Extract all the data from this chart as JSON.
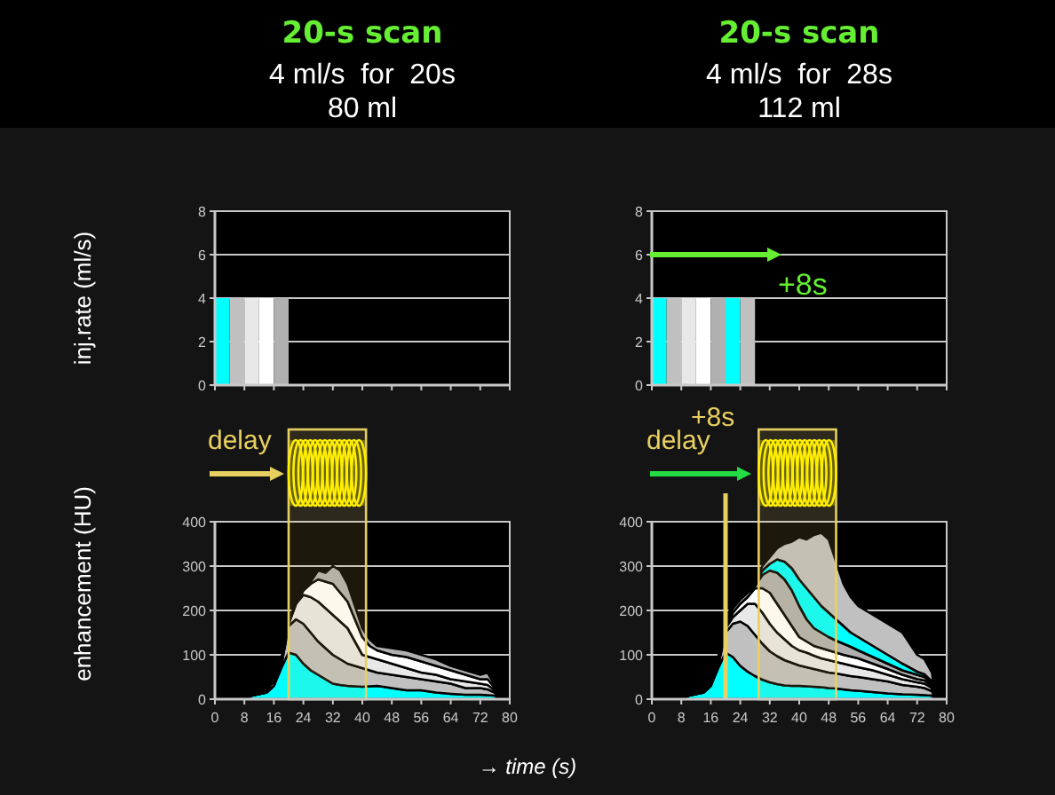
{
  "chart_data": [
    {
      "type": "bar",
      "title": "20-s scan",
      "subtitle": "4 ml/s  for  20s\n80 ml",
      "ylabel": "inj.rate (ml/s)",
      "x": [
        2,
        6,
        10,
        14,
        18
      ],
      "values": [
        4,
        4,
        4,
        4,
        4
      ],
      "colors": [
        "#00ffff",
        "#c0c0c0",
        "#e8e8e8",
        "#ffffff",
        "#b0b0b0"
      ],
      "xlim": [
        0,
        80
      ],
      "xticks": [
        {
          "value": 0,
          "label": null
        },
        {
          "value": 8,
          "label": null
        },
        {
          "value": 16,
          "label": null
        },
        {
          "value": 24,
          "label": null
        },
        {
          "value": 32,
          "label": null
        },
        {
          "value": 40,
          "label": null
        },
        {
          "value": 48,
          "label": null
        },
        {
          "value": 56,
          "label": null
        },
        {
          "value": 64,
          "label": null
        },
        {
          "value": 72,
          "label": null
        },
        {
          "value": 80,
          "label": null
        }
      ],
      "ylim": [
        0,
        8
      ],
      "yticks": [
        0,
        2,
        4,
        6,
        8
      ],
      "tick_labels": "y",
      "grid": "y"
    },
    {
      "type": "bar",
      "title": "20-s scan",
      "subtitle": "4 ml/s  for  28s\n112 ml",
      "annotations": [
        "+8s"
      ],
      "x": [
        2,
        6,
        10,
        14,
        18,
        22,
        26
      ],
      "values": [
        4,
        4,
        4,
        4,
        4,
        4,
        4
      ],
      "colors": [
        "#00ffff",
        "#c0c0c0",
        "#e8e8e8",
        "#ffffff",
        "#b0b0b0",
        "#00ffff",
        "#c0c0c0"
      ],
      "xlim": [
        0,
        80
      ],
      "xticks": [
        {
          "value": 0,
          "label": null
        },
        {
          "value": 8,
          "label": null
        },
        {
          "value": 16,
          "label": null
        },
        {
          "value": 24,
          "label": null
        },
        {
          "value": 32,
          "label": null
        },
        {
          "value": 40,
          "label": null
        },
        {
          "value": 48,
          "label": null
        },
        {
          "value": 56,
          "label": null
        },
        {
          "value": 64,
          "label": null
        },
        {
          "value": 72,
          "label": null
        },
        {
          "value": 80,
          "label": null
        }
      ],
      "ylim": [
        0,
        8
      ],
      "yticks": [
        0,
        2,
        4,
        6,
        8
      ],
      "tick_labels": "y",
      "grid": "y"
    },
    {
      "type": "area",
      "stacked": true,
      "ylabel": "enhancement (HU)",
      "xlabel": "→ time (s)",
      "annotations": [
        "delay"
      ],
      "x": [
        0,
        8,
        10,
        14,
        16,
        18,
        20,
        22,
        24,
        26,
        28,
        30,
        32,
        34,
        36,
        38,
        40,
        42,
        44,
        48,
        52,
        56,
        60,
        64,
        68,
        72,
        74,
        76,
        77
      ],
      "series": [
        {
          "color": "#00ffff",
          "values": [
            0,
            0,
            8,
            15,
            30,
            70,
            105,
            100,
            80,
            65,
            55,
            45,
            35,
            32,
            30,
            29,
            28,
            29,
            30,
            25,
            20,
            20,
            15,
            12,
            10,
            10,
            9,
            8,
            0
          ]
        },
        {
          "color": "#c0c0c0",
          "values": [
            0,
            0,
            0,
            0,
            0,
            5,
            60,
            80,
            90,
            85,
            75,
            70,
            65,
            58,
            50,
            46,
            42,
            36,
            30,
            30,
            30,
            25,
            25,
            23,
            15,
            15,
            13,
            7,
            0
          ]
        },
        {
          "color": "#e8e8e8",
          "values": [
            0,
            0,
            0,
            0,
            0,
            5,
            5,
            35,
            65,
            80,
            90,
            90,
            90,
            85,
            80,
            55,
            30,
            30,
            30,
            25,
            20,
            15,
            15,
            10,
            15,
            10,
            10,
            5,
            0
          ]
        },
        {
          "color": "#ffffff",
          "values": [
            0,
            0,
            0,
            0,
            0,
            5,
            0,
            0,
            10,
            30,
            50,
            60,
            70,
            65,
            60,
            50,
            40,
            25,
            20,
            20,
            25,
            25,
            20,
            20,
            15,
            10,
            13,
            5,
            0
          ]
        },
        {
          "color": "#b0b0b0",
          "values": [
            0,
            0,
            2,
            5,
            10,
            5,
            5,
            5,
            5,
            5,
            20,
            20,
            40,
            50,
            40,
            30,
            20,
            15,
            10,
            15,
            15,
            15,
            15,
            10,
            10,
            10,
            15,
            5,
            0
          ]
        }
      ],
      "bands": [
        {
          "axis": "x",
          "from": 20,
          "to": 41,
          "color": "#e8d060"
        }
      ],
      "xlim": [
        0,
        80
      ],
      "xticks": [
        0,
        8,
        16,
        24,
        32,
        40,
        48,
        56,
        64,
        72,
        80
      ],
      "ylim": [
        0,
        400
      ],
      "yticks": [
        0,
        100,
        200,
        300,
        400
      ],
      "grid": "y"
    },
    {
      "type": "area",
      "stacked": true,
      "annotations": [
        "delay",
        "+8s"
      ],
      "x": [
        0,
        8,
        10,
        14,
        16,
        18,
        20,
        22,
        24,
        26,
        28,
        30,
        32,
        34,
        36,
        38,
        40,
        42,
        44,
        46,
        48,
        50,
        52,
        54,
        56,
        60,
        64,
        68,
        72,
        74,
        76,
        77
      ],
      "series": [
        {
          "color": "#00ffff",
          "values": [
            0,
            0,
            8,
            15,
            30,
            70,
            105,
            95,
            75,
            62,
            52,
            44,
            38,
            34,
            31,
            30,
            30,
            29,
            28,
            27,
            25,
            24,
            22,
            20,
            19,
            16,
            13,
            11,
            10,
            9,
            8,
            0
          ]
        },
        {
          "color": "#c0c0c0",
          "values": [
            0,
            0,
            0,
            0,
            0,
            5,
            45,
            75,
            100,
            103,
            93,
            81,
            70,
            63,
            57,
            52,
            46,
            43,
            40,
            37,
            35,
            34,
            33,
            32,
            31,
            29,
            27,
            21,
            18,
            16,
            10,
            0
          ]
        },
        {
          "color": "#e8e8e8",
          "values": [
            0,
            0,
            0,
            0,
            0,
            5,
            10,
            15,
            25,
            50,
            70,
            70,
            62,
            53,
            47,
            38,
            34,
            33,
            30,
            28,
            28,
            26,
            25,
            24,
            22,
            20,
            15,
            13,
            10,
            10,
            7,
            0
          ]
        },
        {
          "color": "#ffffff",
          "values": [
            0,
            0,
            0,
            0,
            0,
            5,
            5,
            10,
            15,
            15,
            35,
            55,
            70,
            65,
            55,
            45,
            30,
            25,
            22,
            23,
            22,
            21,
            20,
            20,
            20,
            15,
            13,
            10,
            7,
            7,
            5,
            0
          ]
        },
        {
          "color": "#b0b0b0",
          "values": [
            0,
            0,
            0,
            0,
            2,
            3,
            5,
            10,
            10,
            10,
            5,
            30,
            50,
            70,
            80,
            80,
            70,
            50,
            40,
            35,
            30,
            27,
            25,
            22,
            18,
            15,
            12,
            10,
            10,
            8,
            5,
            0
          ]
        },
        {
          "color": "#00ffff",
          "values": [
            0,
            0,
            1,
            0,
            3,
            2,
            5,
            5,
            5,
            5,
            5,
            10,
            15,
            30,
            40,
            50,
            60,
            70,
            70,
            60,
            55,
            48,
            40,
            32,
            30,
            25,
            20,
            15,
            7,
            6,
            5,
            0
          ]
        },
        {
          "color": "#c0c0c0",
          "values": [
            0,
            0,
            1,
            1,
            5,
            5,
            5,
            5,
            5,
            5,
            5,
            10,
            15,
            25,
            40,
            60,
            95,
            110,
            140,
            165,
            165,
            130,
            95,
            80,
            70,
            70,
            70,
            70,
            38,
            34,
            20,
            0
          ]
        }
      ],
      "bands": [
        {
          "axis": "x",
          "from": 29,
          "to": 50,
          "color": "#e8d060"
        }
      ],
      "ref_lines": [
        {
          "axis": "x",
          "value": 20,
          "color": "#e8d060"
        }
      ],
      "xlim": [
        0,
        80
      ],
      "xticks": [
        0,
        8,
        16,
        24,
        32,
        40,
        48,
        56,
        64,
        72,
        80
      ],
      "ylim": [
        0,
        400
      ],
      "yticks": [
        0,
        100,
        200,
        300,
        400
      ],
      "grid": "y"
    }
  ]
}
